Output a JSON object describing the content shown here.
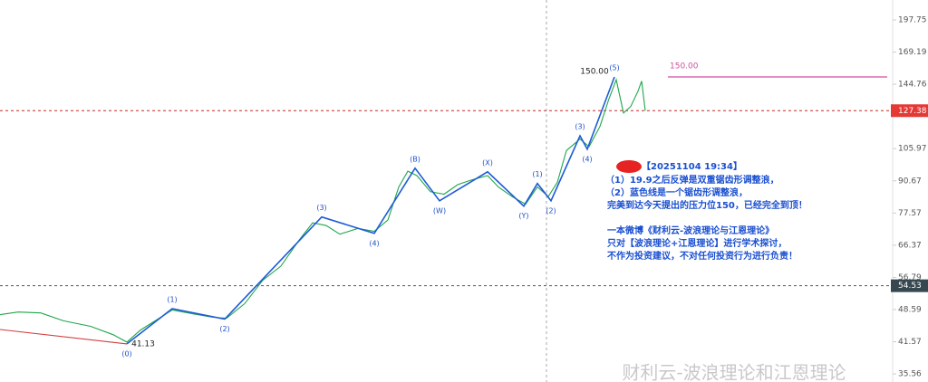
{
  "chart_data": {
    "type": "line",
    "log_scale": true,
    "xlim": [
      0,
      985
    ],
    "ylim": [
      34.2,
      217.8
    ],
    "yticks": [
      197.75,
      169.19,
      144.76,
      105.97,
      90.67,
      77.57,
      66.37,
      56.79,
      48.59,
      41.57,
      35.56
    ],
    "price_lines": [
      {
        "value": 127.38,
        "color": "#c62828",
        "tag_color": "#e53935"
      },
      {
        "value": 54.53,
        "color": "#555555",
        "tag_color": "#37474f"
      }
    ],
    "level_line": {
      "value": 150,
      "label": "150.00",
      "color": "#d04fa0"
    },
    "series": [
      {
        "name": "Price",
        "color": "#1fa64a",
        "x": [
          0,
          20,
          45,
          70,
          100,
          125,
          140,
          155,
          175,
          190,
          215,
          235,
          250,
          270,
          290,
          310,
          330,
          345,
          360,
          375,
          395,
          413,
          428,
          440,
          450,
          460,
          475,
          490,
          505,
          520,
          538,
          550,
          565,
          580,
          593,
          605,
          615,
          625,
          640,
          650,
          662,
          672,
          680,
          688,
          696,
          704,
          708,
          712
        ],
        "values": [
          47.4,
          48.0,
          47.8,
          46.0,
          44.8,
          43.0,
          41.5,
          44.0,
          46.5,
          48.5,
          47.5,
          46.8,
          46.6,
          50,
          56,
          60,
          68,
          74,
          73,
          70,
          72,
          71,
          75,
          88,
          95,
          93,
          86,
          85,
          89,
          91,
          93,
          88,
          84,
          81,
          88,
          84,
          90,
          105,
          111,
          107,
          118,
          135,
          148,
          126,
          130,
          140,
          147,
          127.38
        ]
      },
      {
        "name": "Wave",
        "color": "#1e5bd8",
        "x": [
          140,
          190,
          248,
          355,
          413,
          458,
          485,
          538,
          578,
          593,
          608,
          640,
          648,
          678
        ],
        "values": [
          41.13,
          48.8,
          46.4,
          76.1,
          70.3,
          96.4,
          82.3,
          94.7,
          80.2,
          89.5,
          82.3,
          112.8,
          105.7,
          150
        ],
        "labels": [
          "(0)",
          "(1)",
          "(2)",
          "(3)",
          "(4)",
          "(B)",
          "(W)",
          "(X)",
          "(Y)",
          "(1)",
          "(2)",
          "(3)",
          "(4)",
          "(5)"
        ],
        "value_labels": [
          "41.13",
          null,
          null,
          null,
          null,
          null,
          null,
          null,
          null,
          null,
          null,
          null,
          null,
          "150.00"
        ]
      },
      {
        "name": "Support",
        "color": "#d33b3b",
        "x": [
          0,
          140
        ],
        "values": [
          44.1,
          41.13
        ]
      }
    ],
    "note": {
      "stamp": "【20251104 19:34】",
      "lines": [
        "（1）19.9之后反弹是双重锯齿形调整浪，",
        "（2）蓝色线是一个锯齿形调整浪，",
        "完美到达今天提出的压力位150，已经完全到顶！",
        "一本微博《财利云-波浪理论与江恩理论》",
        "只对【波浪理论+江恩理论】进行学术探讨，",
        "不作为投资建议，不对任何投资行为进行负责！"
      ]
    },
    "watermark": "财利云-波浪理论和江恩理论"
  }
}
